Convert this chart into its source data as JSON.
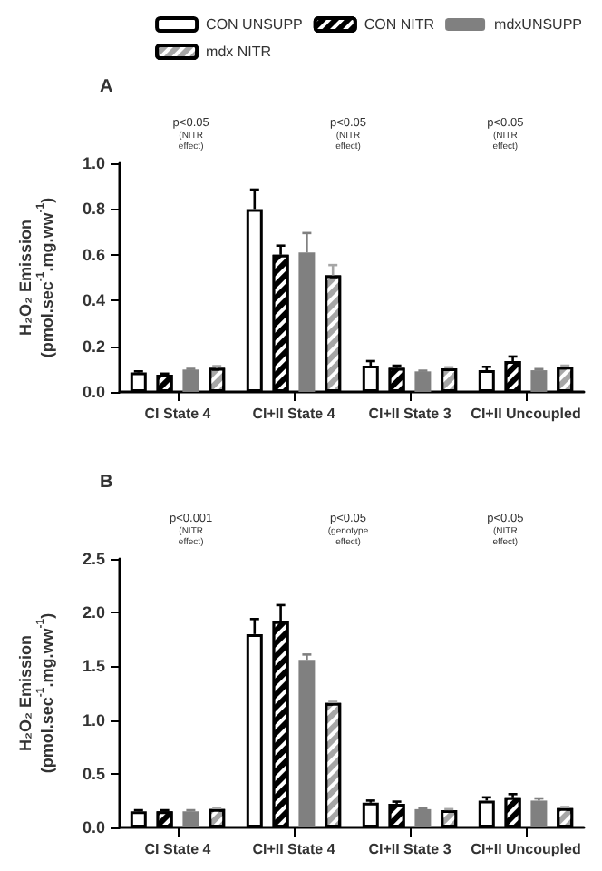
{
  "chart_data": [
    {
      "type": "bar",
      "title": "A",
      "ylabel": "H₂O₂ Emission\n(pmol.sec$^{-1}$.mg.ww$^{-1}$)",
      "categories": [
        "CI State 4",
        "CI+II State 4",
        "CI+II State 3",
        "CI+II Uncoupled"
      ],
      "ylim": [
        0,
        1
      ],
      "yticks": [
        {
          "value": 0,
          "label": "0.0"
        },
        0.2,
        0.4,
        0.6,
        0.8,
        {
          "value": 1,
          "label": "1.0"
        }
      ],
      "grid": false,
      "legend": "top right",
      "series": [
        {
          "name": "CON UNSUPP",
          "color": "#ffffff",
          "values": [
            0.085,
            0.8,
            0.115,
            0.095
          ],
          "errors": [
            0.005,
            0.085,
            0.02,
            0.015
          ]
        },
        {
          "name": "CON NITR",
          "color": "#000000",
          "values": [
            0.075,
            0.6,
            0.105,
            0.135
          ],
          "errors": [
            0.005,
            0.04,
            0.01,
            0.02
          ]
        },
        {
          "name": "mdxUNSUPP",
          "color": "#808080",
          "values": [
            0.098,
            0.61,
            0.09,
            0.095
          ],
          "errors": [
            0.003,
            0.085,
            0.003,
            0.005
          ]
        },
        {
          "name": "mdx NITR",
          "color": "#a6a6a6",
          "values": [
            0.105,
            0.51,
            0.103,
            0.11
          ],
          "errors": [
            0.008,
            0.045,
            0.005,
            0.005
          ]
        }
      ],
      "annotations": [
        "p<0.05\n(NITR\neffect)",
        "p<0.05\n(NITR\neffect)",
        "p<0.05\n(NITR\neffect)"
      ]
    },
    {
      "type": "bar",
      "title": "B",
      "ylabel": "H₂O₂ Emission\n(pmol.sec$^{-1}$.mg.ww$^{-1}$)",
      "categories": [
        "CI State 4",
        "CI+II State 4",
        "CI+II State 3",
        "CI+II Uncoupled"
      ],
      "ylim": [
        0,
        2.5
      ],
      "yticks": [
        {
          "value": 0,
          "label": "0.0"
        },
        0.5,
        {
          "value": 1,
          "label": "1.0"
        },
        1.5,
        {
          "value": 2,
          "label": "2.0"
        },
        2.5
      ],
      "grid": false,
      "legend": false,
      "series": [
        {
          "color": "#ffffff",
          "values": [
            0.15,
            1.8,
            0.23,
            0.25
          ],
          "errors": [
            0.01,
            0.14,
            0.02,
            0.03
          ]
        },
        {
          "color": "#000000",
          "values": [
            0.15,
            1.92,
            0.22,
            0.28
          ],
          "errors": [
            0.01,
            0.15,
            0.02,
            0.03
          ]
        },
        {
          "color": "#808080",
          "values": [
            0.15,
            1.56,
            0.17,
            0.25
          ],
          "errors": [
            0.01,
            0.05,
            0.01,
            0.02
          ]
        },
        {
          "color": "#a6a6a6",
          "values": [
            0.17,
            1.16,
            0.16,
            0.18
          ],
          "errors": [
            0.01,
            0.01,
            0.01,
            0.01
          ]
        }
      ],
      "annotations": [
        "p<0.001\n(NITR\neffect)",
        "p<0.05\n(genotype\neffect)",
        "p<0.05\n(NITR\neffect)"
      ]
    }
  ]
}
